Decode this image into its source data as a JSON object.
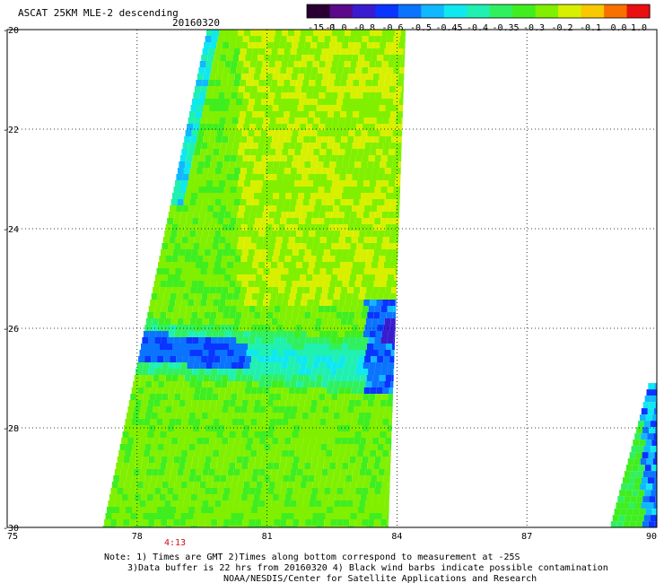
{
  "title": {
    "product": "ASCAT 25KM MLE-2 descending",
    "date": "20160320"
  },
  "colorbar": {
    "colors": [
      "#2a0032",
      "#5a0a8a",
      "#3a1cd0",
      "#0a34ff",
      "#0a74ff",
      "#10b8ff",
      "#10e8f0",
      "#20f0b0",
      "#30f060",
      "#40ee20",
      "#80f000",
      "#d8f000",
      "#f8c800",
      "#f87000",
      "#e81010"
    ],
    "labels": [
      "-15.0",
      "-1.0",
      "-0.8",
      "-0.6",
      "-0.5",
      "-0.45",
      "-0.4",
      "-0.35",
      "-0.3",
      "-0.2",
      "-0.1",
      "0.0",
      "1.0"
    ]
  },
  "axes": {
    "lon_ticks": [
      "75",
      "78",
      "81",
      "84",
      "87",
      "90"
    ],
    "lat_ticks": [
      "-20",
      "-22",
      "-24",
      "-26",
      "-28",
      "-30"
    ],
    "lon_range": [
      75,
      90
    ],
    "lat_range": [
      -30,
      -20
    ],
    "grid": "dotted"
  },
  "pass_time": "4:13",
  "notes": [
    "Note: 1) Times are GMT 2)Times along bottom correspond to measurement at -25S",
    "3)Data buffer is 22 hrs from 20160320 4) Black wind barbs indicate possible contamination",
    "NOAA/NESDIS/Center for Satellite Applications and Research"
  ],
  "swaths": [
    {
      "name": "main-swath",
      "lon_top": [
        79.6,
        84.2
      ],
      "lon_bottom": [
        77.2,
        83.8
      ],
      "lat_top": -20.0,
      "lat_bottom": -30.0
    },
    {
      "name": "east-swath",
      "lon_top": [
        89.8,
        90.0
      ],
      "lon_bottom": [
        88.9,
        90.0
      ],
      "lat_top": -27.1,
      "lat_bottom": -30.0
    }
  ]
}
